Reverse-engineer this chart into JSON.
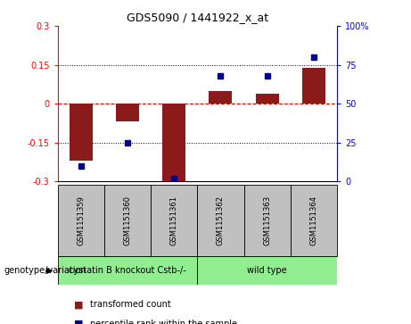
{
  "title": "GDS5090 / 1441922_x_at",
  "samples": [
    "GSM1151359",
    "GSM1151360",
    "GSM1151361",
    "GSM1151362",
    "GSM1151363",
    "GSM1151364"
  ],
  "transformed_count": [
    -0.22,
    -0.07,
    -0.3,
    0.05,
    0.04,
    0.14
  ],
  "percentile_rank": [
    10,
    25,
    2,
    68,
    68,
    80
  ],
  "ylim_left": [
    -0.3,
    0.3
  ],
  "ylim_right": [
    0,
    100
  ],
  "yticks_left": [
    -0.3,
    -0.15,
    0,
    0.15,
    0.3
  ],
  "ytick_labels_left": [
    "-0.3",
    "-0.15",
    "0",
    "0.15",
    "0.3"
  ],
  "yticks_right": [
    0,
    25,
    50,
    75,
    100
  ],
  "ytick_labels_right": [
    "0",
    "25",
    "50",
    "75",
    "100%"
  ],
  "group1_label": "cystatin B knockout Cstb-/-",
  "group2_label": "wild type",
  "group1_indices": [
    0,
    1,
    2
  ],
  "group2_indices": [
    3,
    4,
    5
  ],
  "bar_color": "#8B1A1A",
  "dot_color": "#00008B",
  "group_bg": "#90EE90",
  "sample_bg": "#C0C0C0",
  "bar_width": 0.5,
  "hline_color": "#CC0000",
  "dot_linestyle": ":",
  "grid_color": "black",
  "grid_style": ":",
  "bg_color": "white",
  "title_fontsize": 9,
  "tick_fontsize": 7,
  "label_fontsize": 7,
  "sample_fontsize": 6,
  "group_fontsize": 7,
  "legend_fontsize": 7
}
